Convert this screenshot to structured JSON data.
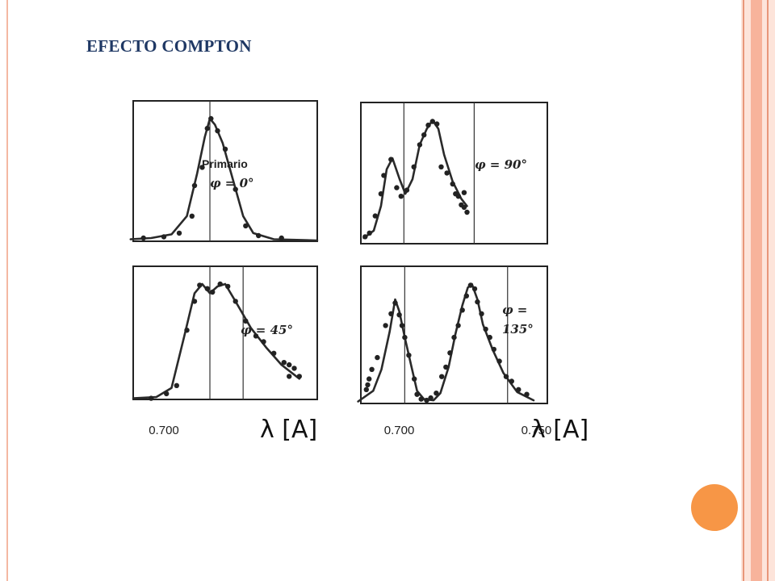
{
  "slide": {
    "title": "EFECTO COMPTON",
    "colors": {
      "title": "#1f3864",
      "accent_circle": "#f79646",
      "stripe_light": "#fde4da",
      "stripe_mid": "#f7b39b",
      "stripe_line": "#e8977a"
    }
  },
  "chart_data": [
    {
      "type": "line",
      "panel": "primario",
      "annotation": [
        "Primario",
        "φ = 0°"
      ],
      "xlabel": "",
      "tick_labels": [],
      "peaks": [
        0.709
      ],
      "series": [
        {
          "curve": [
            [
              0.6935,
              0.01
            ],
            [
              0.6975,
              0.02
            ],
            [
              0.7015,
              0.05
            ],
            [
              0.7045,
              0.2
            ],
            [
              0.7065,
              0.55
            ],
            [
              0.708,
              0.85
            ],
            [
              0.709,
              1.0
            ],
            [
              0.71,
              0.95
            ],
            [
              0.7115,
              0.8
            ],
            [
              0.7135,
              0.5
            ],
            [
              0.7155,
              0.2
            ],
            [
              0.7175,
              0.06
            ],
            [
              0.7215,
              0.01
            ],
            [
              0.73,
              0.0
            ]
          ]
        },
        {
          "points": [
            [
              0.696,
              0.02
            ],
            [
              0.7,
              0.03
            ],
            [
              0.703,
              0.06
            ],
            [
              0.7055,
              0.2
            ],
            [
              0.706,
              0.45
            ],
            [
              0.7075,
              0.6
            ],
            [
              0.7085,
              0.92
            ],
            [
              0.7092,
              1.0
            ],
            [
              0.7105,
              0.9
            ],
            [
              0.712,
              0.75
            ],
            [
              0.714,
              0.42
            ],
            [
              0.716,
              0.12
            ],
            [
              0.7185,
              0.04
            ],
            [
              0.723,
              0.02
            ]
          ]
        }
      ]
    },
    {
      "type": "line",
      "panel": "90",
      "annotation": [
        "φ = 90°"
      ],
      "xlabel": "",
      "tick_labels": [],
      "peaks": [
        0.709,
        0.7335
      ],
      "series": [
        {
          "curve": [
            [
              0.695,
              0.04
            ],
            [
              0.6985,
              0.1
            ],
            [
              0.701,
              0.3
            ],
            [
              0.703,
              0.6
            ],
            [
              0.705,
              0.69
            ],
            [
              0.7075,
              0.52
            ],
            [
              0.7095,
              0.4
            ],
            [
              0.712,
              0.52
            ],
            [
              0.7145,
              0.8
            ],
            [
              0.717,
              0.93
            ],
            [
              0.719,
              1.0
            ],
            [
              0.721,
              0.93
            ],
            [
              0.723,
              0.72
            ],
            [
              0.726,
              0.5
            ],
            [
              0.729,
              0.36
            ],
            [
              0.731,
              0.3
            ]
          ]
        },
        {
          "points": [
            [
              0.6955,
              0.05
            ],
            [
              0.697,
              0.08
            ],
            [
              0.699,
              0.22
            ],
            [
              0.701,
              0.4
            ],
            [
              0.702,
              0.55
            ],
            [
              0.7045,
              0.68
            ],
            [
              0.7065,
              0.45
            ],
            [
              0.708,
              0.38
            ],
            [
              0.71,
              0.43
            ],
            [
              0.7125,
              0.62
            ],
            [
              0.7145,
              0.8
            ],
            [
              0.716,
              0.88
            ],
            [
              0.7175,
              0.96
            ],
            [
              0.719,
              0.99
            ],
            [
              0.7205,
              0.97
            ],
            [
              0.722,
              0.62
            ],
            [
              0.724,
              0.57
            ],
            [
              0.726,
              0.48
            ],
            [
              0.727,
              0.4
            ],
            [
              0.728,
              0.38
            ],
            [
              0.729,
              0.31
            ],
            [
              0.73,
              0.29
            ],
            [
              0.731,
              0.25
            ],
            [
              0.73,
              0.41
            ]
          ]
        }
      ]
    },
    {
      "type": "line",
      "panel": "45",
      "annotation": [
        "φ = 45°"
      ],
      "xlabel": "λ [A]",
      "tick_labels": [
        {
          "value": 0.7,
          "label": "0.700"
        }
      ],
      "peaks": [
        0.709,
        0.7155
      ],
      "series": [
        {
          "curve": [
            [
              0.694,
              0.01
            ],
            [
              0.6985,
              0.02
            ],
            [
              0.7015,
              0.1
            ],
            [
              0.704,
              0.55
            ],
            [
              0.706,
              0.92
            ],
            [
              0.7075,
              1.0
            ],
            [
              0.709,
              0.92
            ],
            [
              0.7105,
              0.98
            ],
            [
              0.712,
              1.0
            ],
            [
              0.714,
              0.85
            ],
            [
              0.717,
              0.62
            ],
            [
              0.72,
              0.45
            ],
            [
              0.723,
              0.3
            ],
            [
              0.7265,
              0.18
            ]
          ]
        },
        {
          "points": [
            [
              0.6975,
              0.01
            ],
            [
              0.7005,
              0.05
            ],
            [
              0.7025,
              0.12
            ],
            [
              0.7045,
              0.6
            ],
            [
              0.706,
              0.85
            ],
            [
              0.707,
              0.99
            ],
            [
              0.7085,
              0.96
            ],
            [
              0.7095,
              0.93
            ],
            [
              0.711,
              1.0
            ],
            [
              0.7125,
              0.98
            ],
            [
              0.714,
              0.85
            ],
            [
              0.716,
              0.68
            ],
            [
              0.718,
              0.55
            ],
            [
              0.7195,
              0.5
            ],
            [
              0.7215,
              0.4
            ],
            [
              0.7235,
              0.32
            ],
            [
              0.7245,
              0.3
            ],
            [
              0.7255,
              0.27
            ],
            [
              0.7265,
              0.2
            ],
            [
              0.7245,
              0.2
            ]
          ]
        }
      ]
    },
    {
      "type": "line",
      "panel": "135",
      "annotation": [
        "φ =",
        "135°"
      ],
      "xlabel": "λ [A]",
      "tick_labels": [
        {
          "value": 0.7,
          "label": "0.700"
        },
        {
          "value": 0.75,
          "label": "0.750"
        }
      ],
      "peaks": [
        0.702,
        0.7395
      ],
      "series": [
        {
          "curve": [
            [
              0.685,
              0.01
            ],
            [
              0.6905,
              0.1
            ],
            [
              0.6935,
              0.28
            ],
            [
              0.6965,
              0.6
            ],
            [
              0.6985,
              0.87
            ],
            [
              0.7,
              0.77
            ],
            [
              0.702,
              0.55
            ],
            [
              0.7045,
              0.3
            ],
            [
              0.7065,
              0.1
            ],
            [
              0.709,
              0.03
            ],
            [
              0.7125,
              0.02
            ],
            [
              0.715,
              0.08
            ],
            [
              0.718,
              0.3
            ],
            [
              0.7205,
              0.58
            ],
            [
              0.723,
              0.82
            ],
            [
              0.725,
              0.97
            ],
            [
              0.7265,
              1.0
            ],
            [
              0.7285,
              0.87
            ],
            [
              0.7305,
              0.66
            ],
            [
              0.734,
              0.45
            ],
            [
              0.738,
              0.25
            ],
            [
              0.743,
              0.09
            ],
            [
              0.749,
              0.02
            ]
          ]
        },
        {
          "points": [
            [
              0.688,
              0.11
            ],
            [
              0.6885,
              0.15
            ],
            [
              0.689,
              0.2
            ],
            [
              0.69,
              0.28
            ],
            [
              0.692,
              0.38
            ],
            [
              0.695,
              0.65
            ],
            [
              0.697,
              0.75
            ],
            [
              0.6985,
              0.84
            ],
            [
              0.7,
              0.74
            ],
            [
              0.701,
              0.65
            ],
            [
              0.702,
              0.55
            ],
            [
              0.7035,
              0.4
            ],
            [
              0.7055,
              0.2
            ],
            [
              0.7065,
              0.07
            ],
            [
              0.708,
              0.03
            ],
            [
              0.71,
              0.02
            ],
            [
              0.7115,
              0.04
            ],
            [
              0.7135,
              0.08
            ],
            [
              0.7155,
              0.22
            ],
            [
              0.717,
              0.3
            ],
            [
              0.7185,
              0.42
            ],
            [
              0.72,
              0.55
            ],
            [
              0.7215,
              0.65
            ],
            [
              0.723,
              0.78
            ],
            [
              0.7245,
              0.9
            ],
            [
              0.726,
              0.99
            ],
            [
              0.7275,
              0.96
            ],
            [
              0.7285,
              0.85
            ],
            [
              0.73,
              0.75
            ],
            [
              0.7315,
              0.62
            ],
            [
              0.733,
              0.55
            ],
            [
              0.7345,
              0.45
            ],
            [
              0.7365,
              0.35
            ],
            [
              0.739,
              0.22
            ],
            [
              0.741,
              0.18
            ],
            [
              0.7435,
              0.11
            ],
            [
              0.7465,
              0.07
            ]
          ]
        }
      ]
    }
  ]
}
